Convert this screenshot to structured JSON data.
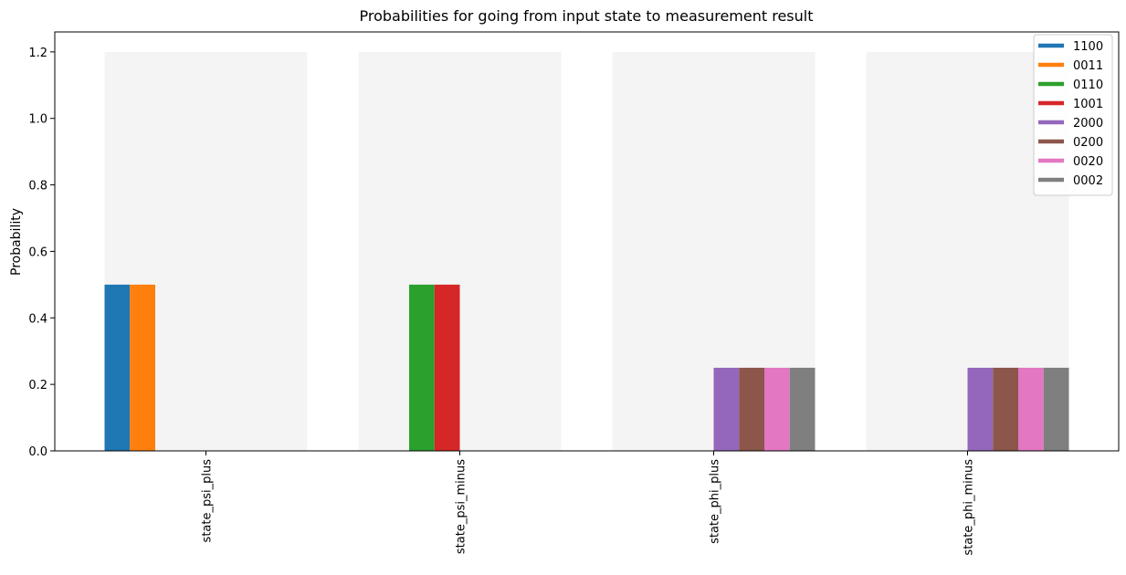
{
  "chart_data": {
    "type": "bar",
    "title": "Probabilities for going from input state to measurement result",
    "xlabel": "",
    "ylabel": "Probability",
    "ylim": [
      0,
      1.26
    ],
    "yticks": [
      "0.0",
      "0.2",
      "0.4",
      "0.6",
      "0.8",
      "1.0",
      "1.2"
    ],
    "background_band_value": 1.2,
    "categories": [
      "state_psi_plus",
      "state_psi_minus",
      "state_phi_plus",
      "state_phi_minus"
    ],
    "legend_position": "top-right",
    "grid": false,
    "series": [
      {
        "name": "1100",
        "color": "#1f77b4",
        "values": [
          0.5,
          0,
          0,
          0
        ]
      },
      {
        "name": "0011",
        "color": "#ff7f0e",
        "values": [
          0.5,
          0,
          0,
          0
        ]
      },
      {
        "name": "0110",
        "color": "#2ca02c",
        "values": [
          0,
          0.5,
          0,
          0
        ]
      },
      {
        "name": "1001",
        "color": "#d62728",
        "values": [
          0,
          0.5,
          0,
          0
        ]
      },
      {
        "name": "2000",
        "color": "#9467bd",
        "values": [
          0,
          0,
          0.25,
          0.25
        ]
      },
      {
        "name": "0200",
        "color": "#8c564b",
        "values": [
          0,
          0,
          0.25,
          0.25
        ]
      },
      {
        "name": "0020",
        "color": "#e377c2",
        "values": [
          0,
          0,
          0.25,
          0.25
        ]
      },
      {
        "name": "0002",
        "color": "#7f7f7f",
        "values": [
          0,
          0,
          0.25,
          0.25
        ]
      }
    ]
  }
}
